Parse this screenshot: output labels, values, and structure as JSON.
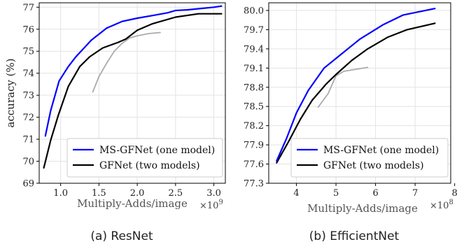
{
  "chart_data": [
    {
      "type": "line",
      "caption": "(a) ResNet",
      "xlabel": "Multiply-Adds/image",
      "x_multiplier": "×10",
      "x_multiplier_exp": "9",
      "ylabel": "accuracy (%)",
      "xlim": [
        0.72,
        3.15
      ],
      "ylim": [
        69,
        77.2
      ],
      "xticks": [
        1.0,
        1.5,
        2.0,
        2.5,
        3.0
      ],
      "xtick_labels": [
        "1.0",
        "1.5",
        "2.0",
        "2.5",
        "3.0"
      ],
      "yticks": [
        69,
        70,
        71,
        72,
        73,
        74,
        75,
        76,
        77
      ],
      "ytick_labels": [
        "69",
        "70",
        "71",
        "72",
        "73",
        "74",
        "75",
        "76",
        "77"
      ],
      "grid": true,
      "legend_position": "lower-right",
      "series": [
        {
          "name": "MS-GFNet (one model)",
          "color": "#0000ff",
          "x": [
            0.8,
            0.87,
            0.98,
            1.1,
            1.2,
            1.4,
            1.6,
            1.8,
            2.0,
            2.2,
            2.4,
            2.5,
            2.65,
            2.8,
            3.0,
            3.1
          ],
          "y": [
            71.15,
            72.3,
            73.65,
            74.3,
            74.75,
            75.5,
            76.05,
            76.35,
            76.5,
            76.62,
            76.75,
            76.85,
            76.88,
            76.93,
            77.0,
            77.05
          ]
        },
        {
          "name": "GFNet (two models)",
          "color": "#000000",
          "x": [
            0.78,
            0.87,
            0.97,
            1.1,
            1.25,
            1.38,
            1.55,
            1.75,
            1.85,
            2.0,
            2.2,
            2.5,
            2.8,
            3.0,
            3.1
          ],
          "y": [
            69.7,
            70.95,
            72.1,
            73.4,
            74.3,
            74.75,
            75.15,
            75.4,
            75.55,
            75.95,
            76.25,
            76.55,
            76.7,
            76.7,
            76.7
          ]
        },
        {
          "name": "",
          "color": "#aaaaaa",
          "x": [
            1.42,
            1.5,
            1.6,
            1.7,
            1.8,
            1.9,
            2.0,
            2.15,
            2.3
          ],
          "y": [
            73.15,
            73.85,
            74.45,
            75.0,
            75.35,
            75.6,
            75.7,
            75.8,
            75.85
          ]
        }
      ]
    },
    {
      "type": "line",
      "caption": "(b) EfficientNet",
      "xlabel": "Multiply-Adds/image",
      "x_multiplier": "×10",
      "x_multiplier_exp": "8",
      "ylabel": "",
      "xlim": [
        3.3,
        7.9
      ],
      "ylim": [
        77.3,
        80.12
      ],
      "xticks": [
        4,
        5,
        6,
        7,
        8
      ],
      "xtick_labels": [
        "4",
        "5",
        "6",
        "7",
        "8"
      ],
      "yticks": [
        77.3,
        77.6,
        77.9,
        78.2,
        78.5,
        78.8,
        79.1,
        79.4,
        79.7,
        80.0
      ],
      "ytick_labels": [
        "77.3",
        "77.6",
        "77.9",
        "78.2",
        "78.5",
        "78.8",
        "79.1",
        "79.4",
        "79.7",
        "80.0"
      ],
      "grid": true,
      "legend_position": "lower-right",
      "series": [
        {
          "name": "MS-GFNet (one model)",
          "color": "#0000ff",
          "x": [
            3.5,
            3.75,
            4.0,
            4.3,
            4.7,
            5.1,
            5.6,
            6.2,
            6.7,
            7.5
          ],
          "y": [
            77.65,
            78.0,
            78.4,
            78.75,
            79.1,
            79.3,
            79.55,
            79.78,
            79.93,
            80.03
          ]
        },
        {
          "name": "GFNet (two models)",
          "color": "#000000",
          "x": [
            3.5,
            3.8,
            4.1,
            4.4,
            4.75,
            5.0,
            5.4,
            5.8,
            6.3,
            6.8,
            7.5
          ],
          "y": [
            77.62,
            77.95,
            78.3,
            78.6,
            78.85,
            79.0,
            79.22,
            79.4,
            79.58,
            79.7,
            79.8
          ]
        },
        {
          "name": "",
          "color": "#aaaaaa",
          "x": [
            4.55,
            4.8,
            5.0,
            5.2,
            5.5,
            5.8
          ],
          "y": [
            78.49,
            78.7,
            78.98,
            79.05,
            79.08,
            79.11
          ]
        }
      ]
    }
  ]
}
